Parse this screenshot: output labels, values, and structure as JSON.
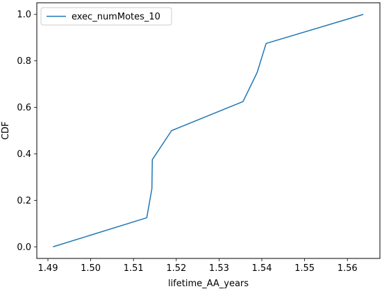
{
  "chart_data": {
    "type": "line",
    "title": "",
    "xlabel": "lifetime_AA_years",
    "ylabel": "CDF",
    "xlim": [
      1.4874,
      1.5676
    ],
    "ylim": [
      -0.05,
      1.05
    ],
    "xticks": [
      1.49,
      1.5,
      1.51,
      1.52,
      1.53,
      1.54,
      1.55,
      1.56
    ],
    "xtick_labels": [
      "1.49",
      "1.50",
      "1.51",
      "1.52",
      "1.53",
      "1.54",
      "1.55",
      "1.56"
    ],
    "yticks": [
      0.0,
      0.2,
      0.4,
      0.6,
      0.8,
      1.0
    ],
    "ytick_labels": [
      "0.0",
      "0.2",
      "0.4",
      "0.6",
      "0.8",
      "1.0"
    ],
    "grid": false,
    "legend_position": "top-left",
    "series": [
      {
        "name": "exec_numMotes_10",
        "color": "#1f77b4",
        "x": [
          1.4912,
          1.5131,
          1.5143,
          1.5144,
          1.5189,
          1.5356,
          1.5389,
          1.541,
          1.5637
        ],
        "y": [
          0.0,
          0.125,
          0.25,
          0.375,
          0.5,
          0.625,
          0.75,
          0.875,
          1.0
        ]
      }
    ]
  }
}
